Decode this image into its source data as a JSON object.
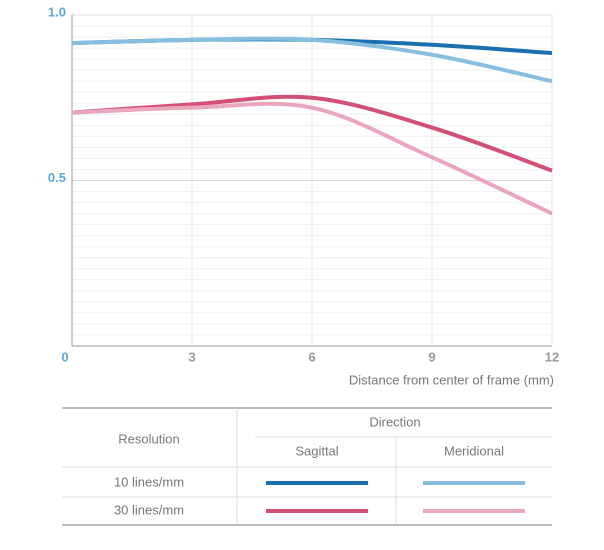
{
  "chart_data": {
    "type": "line",
    "x": [
      0,
      3,
      6,
      9,
      12
    ],
    "xlim": [
      0,
      12
    ],
    "xticks": [
      0,
      3,
      6,
      9,
      12
    ],
    "ylim": [
      0,
      1
    ],
    "yticks": [
      {
        "value": 0.5,
        "label": "0.5"
      },
      {
        "value": 1,
        "label": "1.0"
      }
    ],
    "x_label": "Distance from center of frame (mm)",
    "series": [
      {
        "color": "#1a6faf",
        "values": [
          0.915,
          0.925,
          0.925,
          0.91,
          0.885
        ]
      },
      {
        "color": "#88bfe0",
        "values": [
          0.915,
          0.925,
          0.925,
          0.88,
          0.8
        ]
      },
      {
        "color": "#d24f76",
        "values": [
          0.705,
          0.73,
          0.75,
          0.66,
          0.53
        ]
      },
      {
        "color": "#eaa7bb",
        "values": [
          0.705,
          0.72,
          0.72,
          0.57,
          0.4
        ]
      }
    ],
    "legend": {
      "row_header": "Resolution",
      "column_header": "Direction",
      "columns": [
        "Sagittal",
        "Meridional"
      ],
      "rows": [
        "10 lines/mm",
        "30 lines/mm"
      ]
    }
  }
}
